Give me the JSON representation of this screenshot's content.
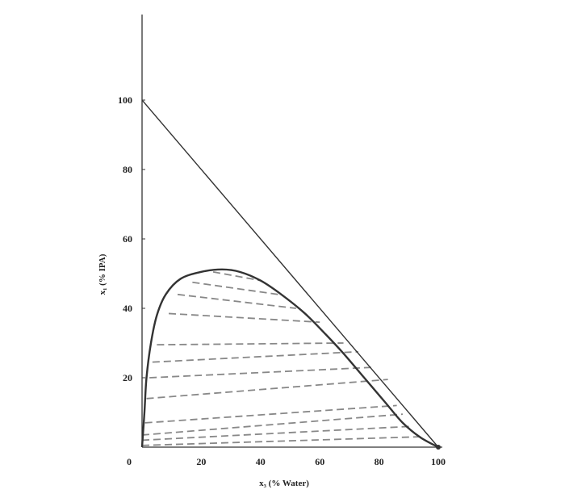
{
  "chart_data": {
    "type": "line",
    "title": "",
    "xlabel": "x₃ (% Water)",
    "ylabel": "x₁ (% IPA)",
    "xlim": [
      0,
      100
    ],
    "ylim": [
      0,
      100
    ],
    "xticks": [
      "0",
      "20",
      "40",
      "60",
      "80",
      "100"
    ],
    "yticks": [
      "20",
      "40",
      "60",
      "80",
      "100"
    ],
    "grid": false,
    "legend": "none",
    "colors": {
      "axis": "#333333",
      "curve": "#333333",
      "tie": "#888888"
    },
    "hypotenuse": [
      [
        0,
        100
      ],
      [
        100,
        0
      ]
    ],
    "binodal": [
      [
        0,
        0
      ],
      [
        0.8,
        10
      ],
      [
        1.5,
        20
      ],
      [
        3,
        30
      ],
      [
        5,
        38
      ],
      [
        8,
        44
      ],
      [
        13,
        48.5
      ],
      [
        20,
        50.5
      ],
      [
        27,
        51.2
      ],
      [
        33,
        50.5
      ],
      [
        40,
        48
      ],
      [
        47,
        44
      ],
      [
        55,
        38.5
      ],
      [
        62,
        32.5
      ],
      [
        68,
        27
      ],
      [
        75,
        20
      ],
      [
        82,
        13
      ],
      [
        88,
        7
      ],
      [
        94,
        2.8
      ],
      [
        100,
        0
      ]
    ],
    "tie_lines": [
      [
        [
          0,
          0.5
        ],
        [
          94,
          3
        ]
      ],
      [
        [
          0,
          2
        ],
        [
          91,
          6
        ]
      ],
      [
        [
          0,
          3.5
        ],
        [
          88,
          9.5
        ]
      ],
      [
        [
          1,
          7
        ],
        [
          86,
          12
        ]
      ],
      [
        [
          1.5,
          14
        ],
        [
          83,
          19.5
        ]
      ],
      [
        [
          2.5,
          20
        ],
        [
          78,
          23
        ]
      ],
      [
        [
          3.5,
          24.5
        ],
        [
          73,
          27.5
        ]
      ],
      [
        [
          5,
          29.5
        ],
        [
          68,
          30
        ]
      ],
      [
        [
          9,
          38.5
        ],
        [
          60,
          36
        ]
      ],
      [
        [
          12,
          44
        ],
        [
          52,
          40
        ]
      ],
      [
        [
          17,
          47.5
        ],
        [
          46,
          44
        ]
      ],
      [
        [
          24,
          50.5
        ],
        [
          40,
          48
        ]
      ]
    ]
  }
}
